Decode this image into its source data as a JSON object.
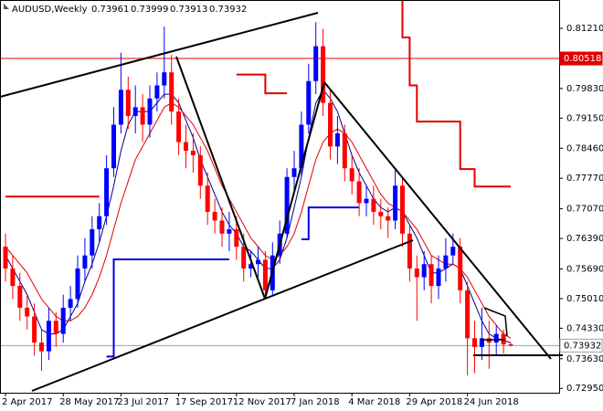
{
  "chart_data": {
    "type": "candlestick",
    "title": "AUDUSD,Weekly",
    "categories": [
      "2 Apr 2017",
      null,
      null,
      null,
      null,
      null,
      null,
      null,
      "28 May 2017",
      null,
      null,
      null,
      null,
      null,
      null,
      null,
      "23 Jul 2017",
      null,
      null,
      null,
      null,
      null,
      null,
      null,
      "17 Sep 2017",
      null,
      null,
      null,
      null,
      null,
      null,
      null,
      "12 Nov 2017",
      null,
      null,
      null,
      null,
      null,
      null,
      null,
      "7 Jan 2018",
      null,
      null,
      null,
      null,
      null,
      null,
      null,
      "4 Mar 2018",
      null,
      null,
      null,
      null,
      null,
      null,
      null,
      "29 Apr 2018",
      null,
      null,
      null,
      null,
      null,
      null,
      null,
      "24 Jun 2018",
      null,
      null,
      null,
      null,
      null,
      null
    ],
    "open": [
      0.762,
      0.757,
      0.753,
      0.748,
      0.746,
      0.74,
      0.738,
      0.745,
      0.742,
      0.748,
      0.75,
      0.757,
      0.76,
      0.766,
      0.769,
      0.78,
      0.79,
      0.798,
      0.792,
      0.794,
      0.79,
      0.796,
      0.799,
      0.802,
      0.793,
      0.786,
      0.784,
      0.783,
      0.776,
      0.77,
      0.768,
      0.765,
      0.766,
      0.762,
      0.757,
      0.758,
      0.759,
      0.752,
      0.76,
      0.765,
      0.778,
      0.78,
      0.79,
      0.8,
      0.808,
      0.795,
      0.785,
      0.788,
      0.78,
      0.777,
      0.772,
      0.773,
      0.77,
      0.769,
      0.768,
      0.776,
      0.765,
      0.757,
      0.755,
      0.758,
      0.753,
      0.757,
      0.76,
      0.762,
      0.752,
      0.741,
      0.739,
      0.741,
      0.74,
      0.742,
      0.73961
    ],
    "high": [
      0.765,
      0.76,
      0.756,
      0.751,
      0.749,
      0.743,
      0.748,
      0.747,
      0.751,
      0.753,
      0.76,
      0.764,
      0.769,
      0.772,
      0.783,
      0.794,
      0.8065,
      0.801,
      0.799,
      0.797,
      0.799,
      0.802,
      0.8125,
      0.806,
      0.796,
      0.79,
      0.788,
      0.785,
      0.779,
      0.773,
      0.771,
      0.77,
      0.769,
      0.765,
      0.761,
      0.762,
      0.761,
      0.763,
      0.768,
      0.78,
      0.784,
      0.793,
      0.804,
      0.8135,
      0.812,
      0.798,
      0.792,
      0.79,
      0.783,
      0.78,
      0.776,
      0.776,
      0.773,
      0.771,
      0.78,
      0.778,
      0.767,
      0.76,
      0.761,
      0.76,
      0.76,
      0.764,
      0.765,
      0.764,
      0.754,
      0.745,
      0.748,
      0.745,
      0.744,
      0.743,
      0.73999
    ],
    "low": [
      0.754,
      0.75,
      0.745,
      0.743,
      0.737,
      0.7335,
      0.736,
      0.739,
      0.74,
      0.745,
      0.748,
      0.754,
      0.757,
      0.763,
      0.767,
      0.778,
      0.788,
      0.789,
      0.788,
      0.786,
      0.787,
      0.793,
      0.796,
      0.79,
      0.783,
      0.78,
      0.779,
      0.773,
      0.767,
      0.765,
      0.762,
      0.761,
      0.759,
      0.754,
      0.755,
      0.755,
      0.75,
      0.751,
      0.758,
      0.764,
      0.775,
      0.778,
      0.788,
      0.797,
      0.792,
      0.782,
      0.781,
      0.777,
      0.774,
      0.769,
      0.769,
      0.767,
      0.766,
      0.764,
      0.766,
      0.762,
      0.754,
      0.745,
      0.752,
      0.749,
      0.75,
      0.754,
      0.758,
      0.749,
      0.7325,
      0.733,
      0.736,
      0.734,
      0.737,
      0.7375,
      0.73913
    ],
    "close": [
      0.757,
      0.753,
      0.748,
      0.746,
      0.74,
      0.738,
      0.745,
      0.742,
      0.748,
      0.75,
      0.757,
      0.76,
      0.766,
      0.769,
      0.78,
      0.79,
      0.798,
      0.792,
      0.794,
      0.79,
      0.796,
      0.799,
      0.802,
      0.793,
      0.786,
      0.784,
      0.783,
      0.776,
      0.77,
      0.768,
      0.765,
      0.766,
      0.762,
      0.757,
      0.758,
      0.759,
      0.752,
      0.76,
      0.765,
      0.778,
      0.78,
      0.79,
      0.8,
      0.808,
      0.795,
      0.785,
      0.788,
      0.78,
      0.777,
      0.772,
      0.773,
      0.77,
      0.769,
      0.768,
      0.776,
      0.765,
      0.757,
      0.755,
      0.758,
      0.753,
      0.757,
      0.76,
      0.762,
      0.752,
      0.741,
      0.739,
      0.741,
      0.74,
      0.742,
      0.7396,
      0.73932
    ],
    "up_color": "#0000ff",
    "down_color": "#ff0000",
    "series": [
      {
        "color": "#00008b",
        "style": "line",
        "values": [
          0.76,
          0.757,
          0.754,
          0.751,
          0.747,
          0.743,
          0.742,
          0.742,
          0.743,
          0.746,
          0.749,
          0.754,
          0.758,
          0.763,
          0.769,
          0.776,
          0.784,
          0.79,
          0.793,
          0.793,
          0.793,
          0.795,
          0.797,
          0.797,
          0.795,
          0.791,
          0.787,
          0.782,
          0.778,
          0.774,
          0.77,
          0.767,
          0.765,
          0.762,
          0.761,
          0.759,
          0.757,
          0.757,
          0.759,
          0.764,
          0.771,
          0.778,
          0.787,
          0.795,
          0.798,
          0.796,
          0.793,
          0.788,
          0.783,
          0.779,
          0.776,
          0.773,
          0.771,
          0.77,
          0.771,
          0.77,
          0.767,
          0.764,
          0.76,
          0.756,
          0.756,
          0.757,
          0.758,
          0.757,
          0.753,
          0.749,
          0.745,
          0.742,
          0.741,
          0.7405,
          0.74
        ]
      },
      {
        "color": "#e00000",
        "style": "line",
        "values": [
          0.762,
          0.76,
          0.758,
          0.756,
          0.753,
          0.75,
          0.748,
          0.746,
          0.745,
          0.745,
          0.746,
          0.748,
          0.751,
          0.755,
          0.76,
          0.766,
          0.772,
          0.777,
          0.782,
          0.785,
          0.788,
          0.791,
          0.794,
          0.795,
          0.794,
          0.792,
          0.79,
          0.787,
          0.784,
          0.78,
          0.776,
          0.773,
          0.77,
          0.767,
          0.764,
          0.762,
          0.76,
          0.759,
          0.76,
          0.762,
          0.765,
          0.77,
          0.776,
          0.782,
          0.786,
          0.788,
          0.789,
          0.788,
          0.786,
          0.783,
          0.78,
          0.777,
          0.774,
          0.772,
          0.771,
          0.77,
          0.768,
          0.766,
          0.763,
          0.76,
          0.759,
          0.758,
          0.758,
          0.757,
          0.755,
          0.752,
          0.749,
          0.746,
          0.744,
          0.742,
          0.741
        ]
      },
      {
        "color": "#e00000",
        "style": "step",
        "values": [
          0.7735,
          0.7735,
          0.7735,
          0.7735,
          0.7735,
          0.7735,
          0.7735,
          0.7735,
          0.7735,
          0.7735,
          0.7735,
          0.7735,
          0.7735,
          0.7735,
          null,
          null,
          null,
          null,
          null,
          null,
          null,
          null,
          null,
          null,
          null,
          null,
          null,
          null,
          null,
          null,
          null,
          null,
          0.8015,
          0.8015,
          0.8015,
          0.8015,
          0.7972,
          0.7972,
          0.7972,
          0.7972,
          null,
          null,
          null,
          null,
          null,
          null,
          null,
          null,
          null,
          null,
          null,
          null,
          null,
          null,
          0.8186,
          0.81,
          0.799,
          0.7907,
          0.7907,
          0.7907,
          0.7907,
          0.7907,
          0.7907,
          0.7798,
          0.7798,
          0.7758,
          0.7758,
          0.7758,
          0.7758,
          0.7758,
          0.7758
        ]
      },
      {
        "color": "#0000dd",
        "style": "step",
        "values": [
          null,
          null,
          null,
          null,
          null,
          null,
          null,
          null,
          null,
          null,
          null,
          null,
          null,
          null,
          0.7368,
          0.7591,
          0.7591,
          0.7591,
          0.7591,
          0.7591,
          0.7591,
          0.7591,
          0.7591,
          0.7591,
          0.7591,
          0.7591,
          0.7591,
          0.7591,
          0.7591,
          0.7591,
          0.7591,
          0.7591,
          null,
          null,
          null,
          null,
          null,
          null,
          null,
          null,
          null,
          0.7637,
          0.771,
          0.771,
          0.771,
          0.771,
          0.771,
          0.771,
          0.771,
          0.771,
          null,
          null,
          null,
          null,
          null,
          null,
          null,
          null,
          null,
          null,
          null,
          null,
          null,
          null,
          null,
          null,
          null,
          null,
          null,
          null,
          null
        ]
      }
    ],
    "hlines": [
      {
        "value": 0.80518,
        "color": "#e00000",
        "label_fill": "#e00000",
        "label_color": "#ffffff"
      },
      {
        "value": 0.73932,
        "color": "#a0a0a0",
        "label_fill": "#ffffff",
        "label_color": "#000000"
      }
    ],
    "ylim": [
      0.7285,
      0.8186
    ],
    "yticks": [
      {
        "value": 0.8121,
        "label": "0.81210"
      },
      {
        "value": 0.7983,
        "label": "0.79830"
      },
      {
        "value": 0.7915,
        "label": "0.79150"
      },
      {
        "value": 0.7846,
        "label": "0.78460"
      },
      {
        "value": 0.7777,
        "label": "0.77770"
      },
      {
        "value": 0.7707,
        "label": "0.77070"
      },
      {
        "value": 0.7639,
        "label": "0.76390"
      },
      {
        "value": 0.7569,
        "label": "0.75690"
      },
      {
        "value": 0.7501,
        "label": "0.75010"
      },
      {
        "value": 0.7433,
        "label": "0.74330"
      },
      {
        "value": 0.7363,
        "label": "0.73630"
      },
      {
        "value": 0.7295,
        "label": "0.72950"
      }
    ],
    "grid": false
  }
}
